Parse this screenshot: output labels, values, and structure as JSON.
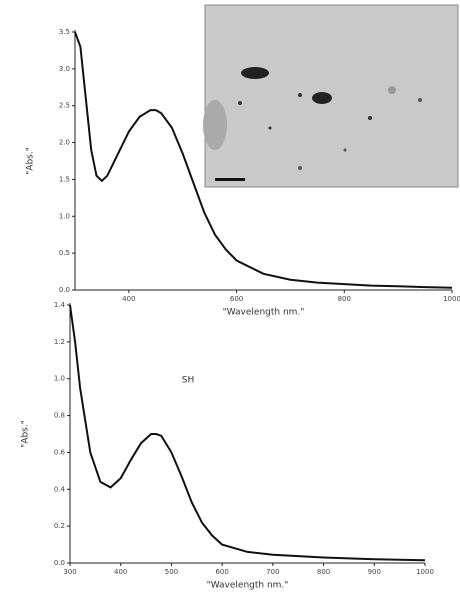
{
  "chart_data": [
    {
      "type": "line",
      "xlabel": "\"Wavelength nm.\"",
      "ylabel": "\"Abs.\"",
      "x": [
        300,
        310,
        320,
        330,
        340,
        350,
        360,
        380,
        400,
        420,
        440,
        450,
        460,
        480,
        500,
        520,
        540,
        560,
        580,
        600,
        650,
        700,
        750,
        800,
        850,
        900,
        950,
        1000
      ],
      "values": [
        3.5,
        3.3,
        2.6,
        1.9,
        1.55,
        1.48,
        1.55,
        1.85,
        2.15,
        2.35,
        2.44,
        2.44,
        2.4,
        2.2,
        1.85,
        1.45,
        1.05,
        0.75,
        0.55,
        0.4,
        0.22,
        0.14,
        0.1,
        0.08,
        0.06,
        0.05,
        0.04,
        0.03
      ],
      "color": "#111111",
      "xlim": [
        300,
        1000
      ],
      "xticks": [
        400,
        600,
        800,
        1000
      ],
      "ylim": [
        0,
        3.5
      ],
      "yticks": [
        {
          "value": 0,
          "label": "0.0"
        },
        0.5,
        {
          "value": 1,
          "label": "1.0"
        },
        1.5,
        {
          "value": 2,
          "label": "2.0"
        },
        2.5,
        {
          "value": 3,
          "label": "3.0"
        },
        3.5
      ]
    },
    {
      "type": "line",
      "xlabel": "\"Wavelength nm.\"",
      "ylabel": "\"Abs.\"",
      "annotation": "SH",
      "x": [
        300,
        310,
        320,
        340,
        360,
        380,
        400,
        420,
        440,
        460,
        470,
        480,
        500,
        520,
        540,
        560,
        580,
        600,
        650,
        700,
        800,
        900,
        1000
      ],
      "values": [
        1.4,
        1.2,
        0.95,
        0.6,
        0.44,
        0.41,
        0.46,
        0.56,
        0.65,
        0.7,
        0.7,
        0.69,
        0.6,
        0.47,
        0.33,
        0.22,
        0.15,
        0.1,
        0.06,
        0.045,
        0.03,
        0.02,
        0.015
      ],
      "color": "#111111",
      "xlim": [
        300,
        1000
      ],
      "xticks": [
        300,
        400,
        500,
        600,
        700,
        800,
        900,
        1000
      ],
      "ylim": [
        0,
        1.4
      ],
      "yticks": [
        {
          "value": 0,
          "label": "0.0"
        },
        0.2,
        0.4,
        0.6,
        0.8,
        {
          "value": 1,
          "label": "1.0"
        },
        1.2,
        1.4
      ]
    }
  ]
}
